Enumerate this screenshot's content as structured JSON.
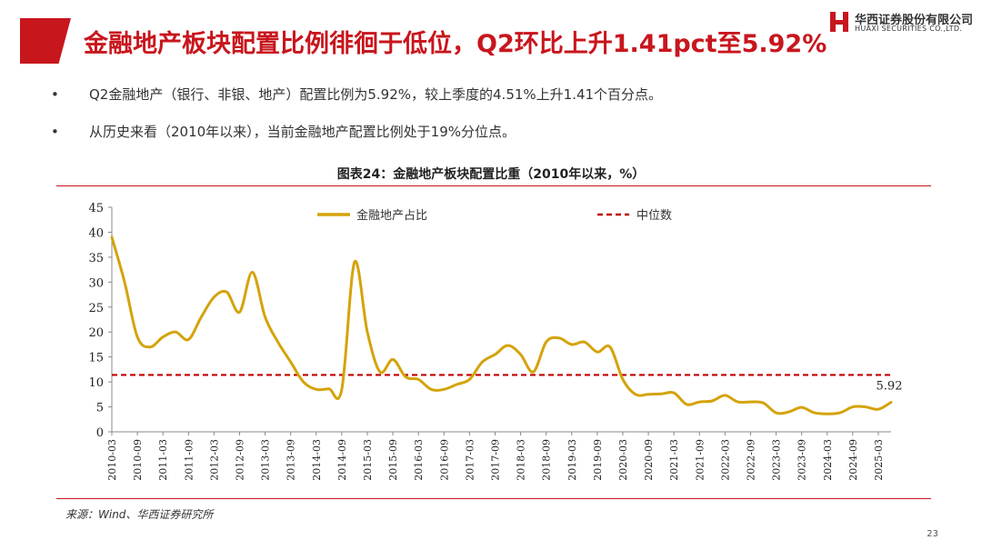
{
  "slide": {
    "title": "金融地产板块配置比例徘徊于低位，Q2环比上升1.41pct至5.92%",
    "logo_cn": "华西证券股份有限公司",
    "logo_en": "HUAXI SECURITIES CO.,LTD.",
    "bullets": [
      "Q2金融地产（银行、非银、地产）配置比例为5.92%，较上季度的4.51%上升1.41个百分点。",
      "从历史来看（2010年以来），当前金融地产配置比例处于19%分位点。"
    ],
    "figure_title": "图表24：金融地产板块配置比重（2010年以来，%）",
    "source": "来源：Wind、华西证券研究所",
    "page_number": "23"
  },
  "colors": {
    "accent": "#c8161d",
    "series_line": "#d4a30b",
    "median_line": "#c00000"
  },
  "chart_data": {
    "type": "line",
    "title": "图表24：金融地产板块配置比重（2010年以来，%）",
    "ylim": [
      0,
      45
    ],
    "yticks": [
      0,
      5,
      10,
      15,
      20,
      25,
      30,
      35,
      40,
      45
    ],
    "grid": false,
    "legend_placement": "top",
    "x": [
      "2010-03",
      "2010-06",
      "2010-09",
      "2010-12",
      "2011-03",
      "2011-06",
      "2011-09",
      "2011-12",
      "2012-03",
      "2012-06",
      "2012-09",
      "2012-12",
      "2013-03",
      "2013-06",
      "2013-09",
      "2013-12",
      "2014-03",
      "2014-06",
      "2014-09",
      "2014-12",
      "2015-03",
      "2015-06",
      "2015-09",
      "2015-12",
      "2016-03",
      "2016-06",
      "2016-09",
      "2016-12",
      "2017-03",
      "2017-06",
      "2017-09",
      "2017-12",
      "2018-03",
      "2018-06",
      "2018-09",
      "2018-12",
      "2019-03",
      "2019-06",
      "2019-09",
      "2019-12",
      "2020-03",
      "2020-06",
      "2020-09",
      "2020-12",
      "2021-03",
      "2021-06",
      "2021-09",
      "2021-12",
      "2022-03",
      "2022-06",
      "2022-09",
      "2022-12",
      "2023-03",
      "2023-06",
      "2023-09",
      "2023-12",
      "2024-03",
      "2024-06",
      "2024-09",
      "2024-12",
      "2025-03",
      "2025-06"
    ],
    "x_tick_labels": [
      "2010-03",
      "2010-09",
      "2011-03",
      "2011-09",
      "2012-03",
      "2012-09",
      "2013-03",
      "2013-09",
      "2014-03",
      "2014-09",
      "2015-03",
      "2015-09",
      "2016-03",
      "2016-09",
      "2017-03",
      "2017-09",
      "2018-03",
      "2018-09",
      "2019-03",
      "2019-09",
      "2020-03",
      "2020-09",
      "2021-03",
      "2021-09",
      "2022-03",
      "2022-09",
      "2023-03",
      "2023-09",
      "2024-03",
      "2024-09",
      "2025-03"
    ],
    "series": [
      {
        "name": "金融地产占比",
        "style": "solid",
        "values": [
          39.0,
          30.0,
          19.0,
          17.0,
          19.0,
          20.0,
          18.5,
          23.0,
          27.0,
          28.0,
          24.0,
          32.0,
          23.0,
          18.0,
          14.0,
          10.0,
          8.5,
          8.6,
          8.5,
          34.0,
          20.0,
          12.0,
          14.5,
          11.0,
          10.5,
          8.5,
          8.5,
          9.5,
          10.5,
          14.0,
          15.5,
          17.3,
          15.5,
          12.0,
          18.0,
          18.8,
          17.5,
          18.0,
          16.0,
          17.0,
          10.5,
          7.5,
          7.5,
          7.6,
          7.8,
          5.5,
          6.0,
          6.2,
          7.3,
          6.0,
          6.0,
          5.8,
          3.8,
          4.0,
          4.9,
          3.8,
          3.6,
          3.8,
          5.0,
          5.0,
          4.51,
          5.92
        ]
      },
      {
        "name": "中位数",
        "style": "dashed",
        "constant": 11.4
      }
    ],
    "annotations": [
      {
        "text": "5.92",
        "x": "2025-06",
        "y": 5.92
      }
    ]
  }
}
